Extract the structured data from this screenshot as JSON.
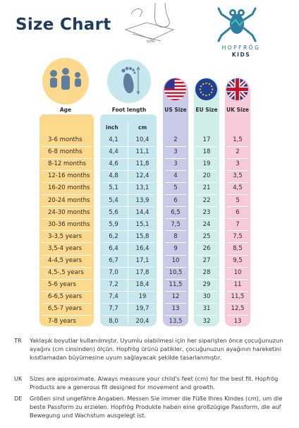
{
  "title": "Size Chart",
  "sketch_label": "(cm)",
  "brand": {
    "name": "HOPFRÖG",
    "sub": "KIDS"
  },
  "headers": {
    "age": "Age",
    "foot": "Foot length",
    "us": "US Size",
    "eu": "EU Size",
    "uk": "UK Size"
  },
  "units": {
    "inch": "inch",
    "cm": "cm"
  },
  "colors": {
    "age": "#fcd98d",
    "age_dark": "#f6c264",
    "foot": "#c6e7ee",
    "us": "#c8cae8",
    "eu": "#cfeee9",
    "uk": "#f6cad8"
  },
  "icons": {
    "age": "family-icon",
    "foot": "footprint-icon",
    "us": "us-flag-icon",
    "eu": "eu-flag-icon",
    "uk": "uk-flag-icon"
  },
  "rows": [
    {
      "age": "3-6 months",
      "inch": "4,1",
      "cm": "10,4",
      "us": "2",
      "eu": "17",
      "uk": "1,5"
    },
    {
      "age": "6-8 months",
      "inch": "4,4",
      "cm": "11,1",
      "us": "3",
      "eu": "18",
      "uk": "2"
    },
    {
      "age": "8-12 months",
      "inch": "4,6",
      "cm": "11,8",
      "us": "3",
      "eu": "19",
      "uk": "3"
    },
    {
      "age": "12-16 months",
      "inch": "4,8",
      "cm": "12,4",
      "us": "4",
      "eu": "20",
      "uk": "3,5"
    },
    {
      "age": "16-20 months",
      "inch": "5,1",
      "cm": "13,1",
      "us": "5",
      "eu": "21",
      "uk": "4,5"
    },
    {
      "age": "20-24 months",
      "inch": "5,4",
      "cm": "13,9",
      "us": "6",
      "eu": "22",
      "uk": "5"
    },
    {
      "age": "24-30 months",
      "inch": "5,6",
      "cm": "14,4",
      "us": "6,5",
      "eu": "23",
      "uk": "6"
    },
    {
      "age": "30-36 months",
      "inch": "5,9",
      "cm": "15,1",
      "us": "7,5",
      "eu": "24",
      "uk": "7"
    },
    {
      "age": "3-3,5 years",
      "inch": "6,2",
      "cm": "15,8",
      "us": "8",
      "eu": "25",
      "uk": "7,5"
    },
    {
      "age": "3,5-4 years",
      "inch": "6,4",
      "cm": "16,4",
      "us": "9",
      "eu": "26",
      "uk": "8,5"
    },
    {
      "age": "4-4,5 years",
      "inch": "6,7",
      "cm": "17,1",
      "us": "10",
      "eu": "27",
      "uk": "9,5"
    },
    {
      "age": "4,5-,5 years",
      "inch": "7,0",
      "cm": "17,8",
      "us": "10,5",
      "eu": "28",
      "uk": "10"
    },
    {
      "age": "5-6 years",
      "inch": "7,2",
      "cm": "18,4",
      "us": "11,5",
      "eu": "29",
      "uk": "11"
    },
    {
      "age": "6-6,5 years",
      "inch": "7,4",
      "cm": "19",
      "us": "12",
      "eu": "30",
      "uk": "11,5"
    },
    {
      "age": "6,5-7 years",
      "inch": "7,7",
      "cm": "19,7",
      "us": "13",
      "eu": "31",
      "uk": "12,5"
    },
    {
      "age": "7-8 years",
      "inch": "8,0",
      "cm": "20,4",
      "us": "13,5",
      "eu": "32",
      "uk": "13"
    }
  ],
  "notes": [
    {
      "code": "TR",
      "text": "Yaklaşık boyutlar kullanılmıştır. Uyumlu olabilmesi için her siparişten önce çocuğunuzun ayağını (cm cinsinden) ölçün. Hopfrög ürünü patikler, çocuğunuzun ayağının hareketini kısıtlamadan büyümesine uyum sağlayacak şekilde tasarlanmıştır."
    },
    {
      "code": "UK",
      "text": "Sizes are approximate. Always measure your child's feet (cm) for the best fit. Hopfrög Products are a generous fit designed for movement and growth."
    },
    {
      "code": "DE",
      "text": "Größen sind ungefähre Angaben. Messen Sie immer die Füße Ihres Kindes (cm), um die beste Passform zu erzielen. Hopfrög Produkte haben eine großzügige Passform, die auf Bewegung und Wachstum ausgelegt ist."
    }
  ]
}
